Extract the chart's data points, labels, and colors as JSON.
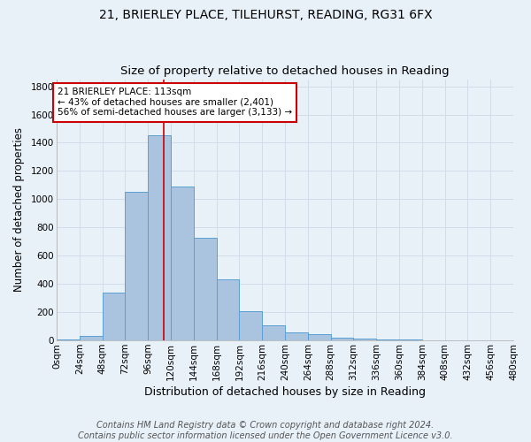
{
  "title1": "21, BRIERLEY PLACE, TILEHURST, READING, RG31 6FX",
  "title2": "Size of property relative to detached houses in Reading",
  "xlabel": "Distribution of detached houses by size in Reading",
  "ylabel": "Number of detached properties",
  "bin_edges": [
    0,
    24,
    48,
    72,
    96,
    120,
    144,
    168,
    192,
    216,
    240,
    264,
    288,
    312,
    336,
    360,
    384,
    408,
    432,
    456,
    480
  ],
  "bar_heights": [
    10,
    35,
    340,
    1050,
    1450,
    1090,
    730,
    430,
    210,
    105,
    55,
    45,
    22,
    14,
    8,
    6,
    4,
    3,
    2,
    1
  ],
  "bar_color": "#aac4e0",
  "bar_edge_color": "#5a9fd4",
  "background_color": "#e8f0f8",
  "grid_color": "#d0dce8",
  "vline_x": 113,
  "vline_color": "#cc0000",
  "annotation_line1": "21 BRIERLEY PLACE: 113sqm",
  "annotation_line2": "← 43% of detached houses are smaller (2,401)",
  "annotation_line3": "56% of semi-detached houses are larger (3,133) →",
  "annotation_box_color": "#ffffff",
  "annotation_box_edge": "#cc0000",
  "footer_line1": "Contains HM Land Registry data © Crown copyright and database right 2024.",
  "footer_line2": "Contains public sector information licensed under the Open Government Licence v3.0.",
  "ylim": [
    0,
    1850
  ],
  "xlim": [
    0,
    480
  ],
  "ytick_positions": [
    0,
    200,
    400,
    600,
    800,
    1000,
    1200,
    1400,
    1600,
    1800
  ],
  "title1_fontsize": 10,
  "title2_fontsize": 9.5,
  "xlabel_fontsize": 9,
  "ylabel_fontsize": 8.5,
  "tick_fontsize": 7.5,
  "annotation_fontsize": 7.5,
  "footer_fontsize": 7
}
